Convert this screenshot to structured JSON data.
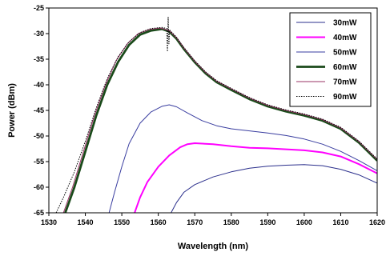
{
  "chart_data": {
    "type": "line",
    "title": "",
    "xlabel": "Wavelength (nm)",
    "ylabel": "Power (dBm)",
    "xlim": [
      1530,
      1620
    ],
    "ylim": [
      -65,
      -25
    ],
    "xticks": [
      1530,
      1540,
      1550,
      1560,
      1570,
      1580,
      1590,
      1600,
      1610,
      1620
    ],
    "yticks": [
      -25,
      -30,
      -35,
      -40,
      -45,
      -50,
      -55,
      -60,
      -65
    ],
    "grid": false,
    "legend_position": "top-right",
    "series": [
      {
        "name": "30mW",
        "color": "#2b2f8c",
        "dash": "solid",
        "width": "thin",
        "points": [
          [
            1563.5,
            -65
          ],
          [
            1565,
            -63
          ],
          [
            1567,
            -61
          ],
          [
            1570,
            -59.5
          ],
          [
            1575,
            -58
          ],
          [
            1580,
            -57
          ],
          [
            1585,
            -56.3
          ],
          [
            1590,
            -55.9
          ],
          [
            1595,
            -55.7
          ],
          [
            1600,
            -55.6
          ],
          [
            1605,
            -55.8
          ],
          [
            1610,
            -56.5
          ],
          [
            1615,
            -57.6
          ],
          [
            1620,
            -59.2
          ]
        ]
      },
      {
        "name": "40mW",
        "color": "#ff00ff",
        "dash": "solid",
        "width": "thick",
        "points": [
          [
            1553.5,
            -65
          ],
          [
            1555,
            -62
          ],
          [
            1557,
            -59
          ],
          [
            1560,
            -56
          ],
          [
            1563,
            -53.8
          ],
          [
            1566,
            -52.2
          ],
          [
            1568,
            -51.6
          ],
          [
            1570,
            -51.4
          ],
          [
            1575,
            -51.6
          ],
          [
            1580,
            -52.0
          ],
          [
            1585,
            -52.3
          ],
          [
            1590,
            -52.4
          ],
          [
            1595,
            -52.6
          ],
          [
            1600,
            -52.8
          ],
          [
            1605,
            -53.2
          ],
          [
            1610,
            -54.0
          ],
          [
            1615,
            -55.5
          ],
          [
            1620,
            -57.3
          ]
        ]
      },
      {
        "name": "50mW",
        "color": "#3a3ea0",
        "dash": "solid",
        "width": "thin",
        "points": [
          [
            1546.5,
            -65
          ],
          [
            1548,
            -61
          ],
          [
            1550,
            -56
          ],
          [
            1552,
            -51.5
          ],
          [
            1555,
            -47.5
          ],
          [
            1558,
            -45.3
          ],
          [
            1561,
            -44.2
          ],
          [
            1563,
            -43.9
          ],
          [
            1565,
            -44.3
          ],
          [
            1568,
            -45.5
          ],
          [
            1572,
            -47.0
          ],
          [
            1576,
            -48.0
          ],
          [
            1580,
            -48.6
          ],
          [
            1585,
            -49.0
          ],
          [
            1590,
            -49.4
          ],
          [
            1595,
            -49.9
          ],
          [
            1600,
            -50.6
          ],
          [
            1605,
            -51.6
          ],
          [
            1610,
            -53.0
          ],
          [
            1615,
            -54.8
          ],
          [
            1620,
            -56.8
          ]
        ]
      },
      {
        "name": "60mW",
        "color": "#1a4a1a",
        "dash": "solid",
        "width": "thicker",
        "points": [
          [
            1534.5,
            -65
          ],
          [
            1537,
            -60
          ],
          [
            1540,
            -53
          ],
          [
            1543,
            -46
          ],
          [
            1546,
            -40
          ],
          [
            1549,
            -35.5
          ],
          [
            1552,
            -32.2
          ],
          [
            1555,
            -30.2
          ],
          [
            1558,
            -29.4
          ],
          [
            1561,
            -29.1
          ],
          [
            1563,
            -29.6
          ],
          [
            1565,
            -31.0
          ],
          [
            1567,
            -33.0
          ],
          [
            1570,
            -35.6
          ],
          [
            1573,
            -37.8
          ],
          [
            1576,
            -39.5
          ],
          [
            1580,
            -41.0
          ],
          [
            1585,
            -42.8
          ],
          [
            1590,
            -44.2
          ],
          [
            1595,
            -45.2
          ],
          [
            1600,
            -46.0
          ],
          [
            1605,
            -47.0
          ],
          [
            1610,
            -48.6
          ],
          [
            1615,
            -51.3
          ],
          [
            1620,
            -54.8
          ]
        ]
      },
      {
        "name": "70mW",
        "color": "#993366",
        "dash": "solid",
        "width": "thin",
        "points": [
          [
            1534.0,
            -65
          ],
          [
            1536.5,
            -60
          ],
          [
            1539.5,
            -53
          ],
          [
            1542.5,
            -46
          ],
          [
            1545.5,
            -40
          ],
          [
            1548.5,
            -35.2
          ],
          [
            1551.5,
            -32.0
          ],
          [
            1554.5,
            -30.0
          ],
          [
            1557.5,
            -29.2
          ],
          [
            1560.5,
            -28.9
          ],
          [
            1563,
            -29.4
          ],
          [
            1565,
            -30.8
          ],
          [
            1567,
            -32.8
          ],
          [
            1570,
            -35.4
          ],
          [
            1573,
            -37.6
          ],
          [
            1576,
            -39.3
          ],
          [
            1580,
            -40.8
          ],
          [
            1585,
            -42.6
          ],
          [
            1590,
            -44.0
          ],
          [
            1595,
            -45.0
          ],
          [
            1600,
            -45.8
          ],
          [
            1605,
            -46.8
          ],
          [
            1610,
            -48.4
          ],
          [
            1615,
            -51.1
          ],
          [
            1620,
            -54.6
          ]
        ]
      },
      {
        "name": "90mW",
        "color": "#000000",
        "dash": "dotted",
        "width": "thin",
        "points": [
          [
            1532,
            -65
          ],
          [
            1534,
            -62
          ],
          [
            1537,
            -57
          ],
          [
            1540,
            -51
          ],
          [
            1543,
            -44.5
          ],
          [
            1546,
            -38.8
          ],
          [
            1549,
            -34.5
          ],
          [
            1552,
            -31.6
          ],
          [
            1555,
            -29.8
          ],
          [
            1558,
            -29.0
          ],
          [
            1561,
            -28.8
          ],
          [
            1562.3,
            -29.0
          ],
          [
            1562.5,
            -33.5
          ],
          [
            1562.7,
            -26.8
          ],
          [
            1562.9,
            -32.0
          ],
          [
            1563.1,
            -29.3
          ],
          [
            1565,
            -30.7
          ],
          [
            1567,
            -32.7
          ],
          [
            1570,
            -35.3
          ],
          [
            1573,
            -37.5
          ],
          [
            1576,
            -39.2
          ],
          [
            1580,
            -40.7
          ],
          [
            1585,
            -42.5
          ],
          [
            1590,
            -43.9
          ],
          [
            1595,
            -44.9
          ],
          [
            1600,
            -45.7
          ],
          [
            1605,
            -46.7
          ],
          [
            1610,
            -48.3
          ],
          [
            1615,
            -51.0
          ],
          [
            1620,
            -54.5
          ]
        ]
      }
    ]
  }
}
